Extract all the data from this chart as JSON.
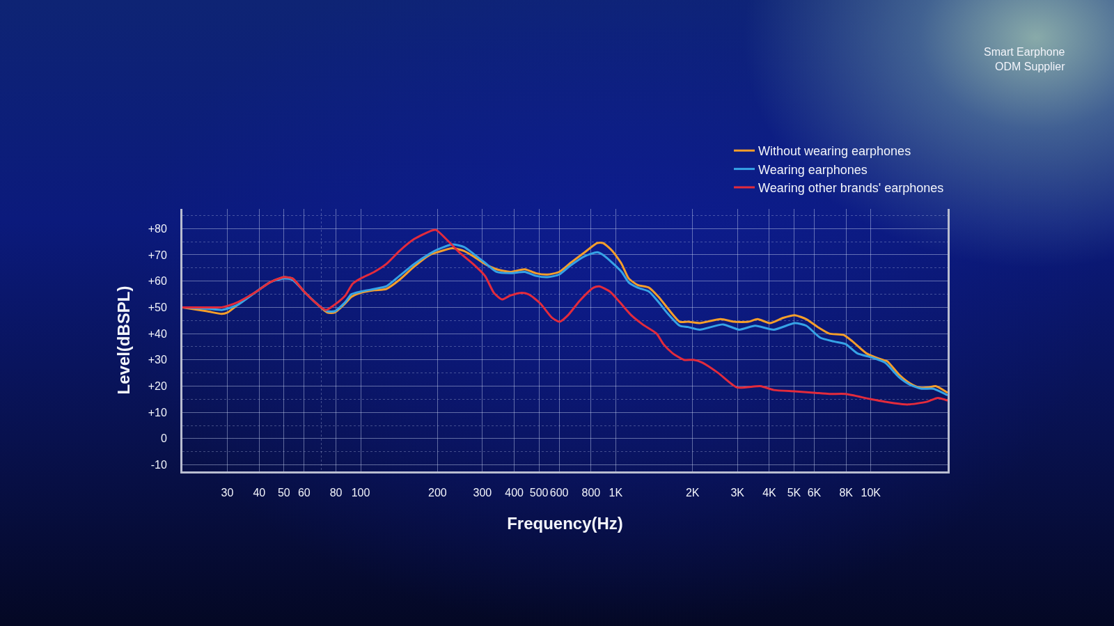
{
  "chart_data": {
    "type": "line",
    "xlabel": "Frequency(Hz)",
    "ylabel": "Level(dBSPL)",
    "annotations": [
      "Smart Earphone\nODM Supplier"
    ],
    "log": "x",
    "grid": true,
    "legend": "top right",
    "xlim": [
      20,
      20000
    ],
    "xticks": [
      30,
      40,
      50,
      60,
      {
        "value": 70,
        "label": null
      },
      80,
      100,
      200,
      300,
      400,
      500,
      600,
      800,
      {
        "value": 1000,
        "label": "1K"
      },
      {
        "value": 2000,
        "label": "2K"
      },
      {
        "value": 3000,
        "label": "3K"
      },
      {
        "value": 4000,
        "label": "4K"
      },
      {
        "value": 5000,
        "label": "5K"
      },
      {
        "value": 6000,
        "label": "6K"
      },
      {
        "value": 8000,
        "label": "8K"
      },
      {
        "value": 10000,
        "label": "10K"
      }
    ],
    "ylim": [
      -12.5,
      87.5
    ],
    "yticks": [
      {
        "value": 85,
        "label": null
      },
      {
        "value": 80,
        "label": "+80"
      },
      {
        "value": 75,
        "label": null
      },
      {
        "value": 70,
        "label": "+70"
      },
      {
        "value": 65,
        "label": null
      },
      {
        "value": 60,
        "label": "+60"
      },
      {
        "value": 55,
        "label": null
      },
      {
        "value": 50,
        "label": "+50"
      },
      {
        "value": 45,
        "label": null
      },
      {
        "value": 40,
        "label": "+40"
      },
      {
        "value": 35,
        "label": null
      },
      {
        "value": 30,
        "label": "+30"
      },
      {
        "value": 25,
        "label": null
      },
      {
        "value": 20,
        "label": "+20"
      },
      {
        "value": 15,
        "label": null
      },
      {
        "value": 10,
        "label": "+10"
      },
      {
        "value": 5,
        "label": null
      },
      0,
      {
        "value": -5,
        "label": null
      },
      -10
    ],
    "series": [
      {
        "name": "Without wearing earphones",
        "color": "#f59e2a",
        "x": [
          20,
          25,
          28.5,
          30,
          33,
          39,
          44,
          50,
          54,
          60,
          67,
          74,
          79,
          87,
          92,
          100,
          113,
          126,
          142,
          162,
          187,
          200,
          229,
          254,
          276,
          307,
          341,
          386,
          440,
          486,
          540,
          600,
          666,
          756,
          846,
          891,
          969,
          1055,
          1124,
          1220,
          1350,
          1471,
          1603,
          1782,
          1921,
          2134,
          2577,
          2918,
          3310,
          3597,
          4023,
          4531,
          5033,
          5583,
          6193,
          6878,
          7807,
          8482,
          9603,
          11114,
          11590,
          12867,
          14275,
          15511,
          16868,
          17954,
          20000
        ],
        "values": [
          50,
          48.5,
          47.5,
          48,
          51,
          56,
          59.5,
          61.5,
          61,
          56,
          51.5,
          48,
          48,
          51.5,
          54,
          55.5,
          56.5,
          57,
          60.5,
          65.5,
          70,
          71,
          72.5,
          71.5,
          69.5,
          66.5,
          64.5,
          63.5,
          64.5,
          63,
          62.5,
          63.5,
          67,
          71,
          74.5,
          74.5,
          71.5,
          66.5,
          61,
          58.5,
          57.5,
          54,
          49.5,
          44.5,
          44.5,
          44,
          45.5,
          44.5,
          44.5,
          45.5,
          44,
          46,
          47,
          45.5,
          42.5,
          40,
          39.5,
          37,
          32.5,
          30,
          29.5,
          24.5,
          21,
          19.5,
          19.5,
          20,
          17.5
        ]
      },
      {
        "name": "Wearing earphones",
        "color": "#36a3e6",
        "x": [
          20,
          25,
          28.5,
          30,
          33,
          39,
          44,
          50,
          54,
          60,
          67,
          74,
          79,
          87,
          92,
          100,
          113,
          126,
          142,
          162,
          187,
          200,
          229,
          254,
          276,
          307,
          341,
          386,
          440,
          486,
          540,
          600,
          666,
          756,
          846,
          891,
          969,
          1055,
          1124,
          1220,
          1350,
          1471,
          1603,
          1782,
          1921,
          2134,
          2634,
          3046,
          3522,
          4166,
          5033,
          5583,
          6323,
          7172,
          7971,
          8850,
          10008,
          11352,
          12867,
          14275,
          15843,
          17582,
          20000
        ],
        "values": [
          50,
          49.5,
          49,
          49.5,
          51,
          56,
          59.5,
          61,
          60.5,
          56,
          51.5,
          48.5,
          48.5,
          52,
          55,
          56,
          57,
          58,
          62,
          66.5,
          70.5,
          72,
          74,
          73,
          70.5,
          67,
          63.5,
          63,
          63.5,
          62,
          61.5,
          62.5,
          66,
          69.5,
          71,
          70,
          67,
          63.5,
          59.5,
          57.5,
          56,
          52,
          47.5,
          43,
          42.5,
          41.5,
          43.5,
          41.5,
          43,
          41.5,
          44,
          43,
          38.5,
          37,
          36,
          32.5,
          31,
          29,
          23.5,
          20.5,
          19,
          19,
          16.5
        ]
      },
      {
        "name": "Wearing other brands' earphones",
        "color": "#e32b3c",
        "x": [
          20,
          25,
          28.5,
          30,
          33,
          39,
          44,
          50,
          54,
          60,
          67,
          73,
          79,
          87,
          93,
          100,
          113,
          126,
          142,
          162,
          187,
          197,
          219,
          243,
          276,
          307,
          333,
          358,
          386,
          424,
          455,
          506,
          563,
          603,
          650,
          722,
          818,
          862,
          949,
          1036,
          1150,
          1275,
          1446,
          1537,
          1671,
          1850,
          2018,
          2180,
          2522,
          2985,
          3688,
          4166,
          5033,
          5967,
          6878,
          7971,
          10008,
          12337,
          13980,
          16519,
          18319,
          20000
        ],
        "values": [
          50,
          50,
          50,
          50.5,
          52,
          56,
          59.5,
          61.5,
          61,
          56,
          51.5,
          49,
          51,
          54.5,
          59,
          61,
          63.5,
          66.5,
          71.5,
          76,
          79,
          79.5,
          75.5,
          71,
          66.5,
          62,
          55.5,
          53,
          54.5,
          55.5,
          55,
          51.5,
          46,
          44.5,
          47,
          52.5,
          57.5,
          58,
          56,
          52,
          47,
          43.5,
          40,
          36,
          32.5,
          30,
          30,
          29,
          25,
          19.5,
          20,
          18.5,
          18,
          17.5,
          17,
          17,
          15,
          13.5,
          13,
          14,
          15.5,
          14.5
        ]
      }
    ]
  }
}
